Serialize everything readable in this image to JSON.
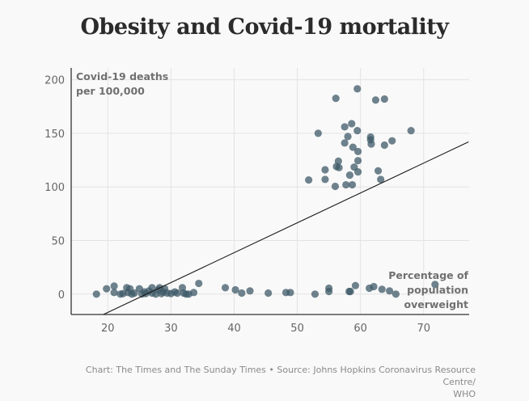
{
  "chart_data": {
    "type": "scatter",
    "title": "Obesity and Covid-19 mortality",
    "ylabel": [
      "Covid-19 deaths",
      "per 100,000"
    ],
    "xlabel": [
      "Percentage of",
      "population",
      "overweight"
    ],
    "xlim": [
      14.2,
      77.2
    ],
    "ylim": [
      -19,
      211
    ],
    "xticks": [
      20,
      30,
      40,
      50,
      60,
      70
    ],
    "yticks": [
      0,
      50,
      100,
      150,
      200
    ],
    "grid": true,
    "point_color": "#3f5a68",
    "trendline": {
      "x": [
        19.3,
        77.1
      ],
      "y": [
        -19,
        142
      ]
    },
    "points": [
      [
        18.2,
        0
      ],
      [
        19.8,
        5
      ],
      [
        21,
        7.5
      ],
      [
        21,
        1.5
      ],
      [
        22,
        0
      ],
      [
        22.4,
        0.5
      ],
      [
        23,
        6
      ],
      [
        23.2,
        1.5
      ],
      [
        23.5,
        5
      ],
      [
        23.8,
        0
      ],
      [
        24.2,
        1
      ],
      [
        25,
        5
      ],
      [
        25.4,
        0
      ],
      [
        25.8,
        2
      ],
      [
        26,
        0.5
      ],
      [
        26.5,
        3
      ],
      [
        27,
        6
      ],
      [
        27,
        1
      ],
      [
        27.6,
        0
      ],
      [
        28,
        4
      ],
      [
        28.2,
        6
      ],
      [
        28.5,
        0.5
      ],
      [
        28.8,
        2
      ],
      [
        29,
        5
      ],
      [
        29.4,
        1
      ],
      [
        30,
        0.5
      ],
      [
        30.6,
        2
      ],
      [
        31,
        1
      ],
      [
        31.8,
        6
      ],
      [
        32,
        1
      ],
      [
        32.4,
        0
      ],
      [
        32.8,
        0
      ],
      [
        33.6,
        1.5
      ],
      [
        34.4,
        10
      ],
      [
        38.6,
        6
      ],
      [
        40.2,
        4
      ],
      [
        41.2,
        1
      ],
      [
        42.5,
        3
      ],
      [
        45.4,
        1
      ],
      [
        48.2,
        1.5
      ],
      [
        48.9,
        1.5
      ],
      [
        52.8,
        0
      ],
      [
        55,
        5.5
      ],
      [
        55,
        2.5
      ],
      [
        58.2,
        2.5
      ],
      [
        58.4,
        2.5
      ],
      [
        59.2,
        8
      ],
      [
        61.4,
        5.5
      ],
      [
        62.1,
        7
      ],
      [
        63.4,
        4.5
      ],
      [
        64.6,
        3
      ],
      [
        65.6,
        0
      ],
      [
        71.8,
        9
      ],
      [
        59.5,
        191.5
      ],
      [
        56.1,
        182.6
      ],
      [
        62.4,
        181
      ],
      [
        63.8,
        182
      ],
      [
        53.3,
        150
      ],
      [
        57.5,
        156
      ],
      [
        58.6,
        159
      ],
      [
        59.5,
        152.5
      ],
      [
        58,
        147
      ],
      [
        57.5,
        141
      ],
      [
        58.8,
        137
      ],
      [
        59.6,
        133
      ],
      [
        61.6,
        146.5
      ],
      [
        61.6,
        144
      ],
      [
        61.7,
        140
      ],
      [
        63.8,
        139
      ],
      [
        65,
        143
      ],
      [
        68,
        152.5
      ],
      [
        56.5,
        124
      ],
      [
        59.6,
        124.5
      ],
      [
        56.2,
        119
      ],
      [
        56.6,
        118
      ],
      [
        59,
        118.5
      ],
      [
        54.4,
        116
      ],
      [
        59.6,
        114
      ],
      [
        62.8,
        115
      ],
      [
        58.3,
        111
      ],
      [
        51.8,
        106.5
      ],
      [
        54.4,
        107
      ],
      [
        63.2,
        107
      ],
      [
        56,
        100.5
      ],
      [
        57.7,
        102
      ],
      [
        58.7,
        102
      ]
    ]
  },
  "footer": {
    "line1": "Chart: The Times and The Sunday Times • Source: Johns Hopkins Coronavirus Resource Centre/",
    "line2": "WHO"
  }
}
